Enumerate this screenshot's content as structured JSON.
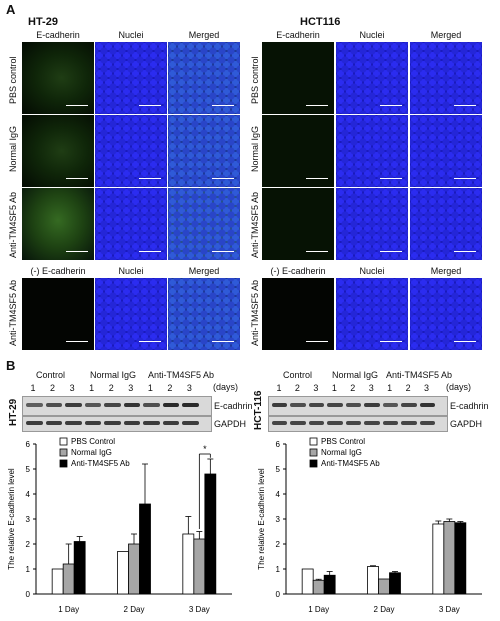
{
  "panel_a": {
    "letter": "A",
    "sections": [
      {
        "title": "HT-29",
        "cols": [
          "E-cadherin",
          "Nuclei",
          "Merged"
        ],
        "rows": [
          "PBS control",
          "Normal IgG",
          "Anti-TM4SF5 Ab"
        ],
        "neg_cols": [
          "(-) E-cadherin",
          "Nuclei",
          "Merged"
        ],
        "neg_row": "Anti-TM4SF5 Ab"
      },
      {
        "title": "HCT116",
        "cols": [
          "E-cadherin",
          "Nuclei",
          "Merged"
        ],
        "rows": [
          "PBS control",
          "Normal IgG",
          "Anti-TM4SF5 Ab"
        ],
        "neg_cols": [
          "(-) E-cadherin",
          "Nuclei",
          "Merged"
        ],
        "neg_row": "Anti-TM4SF5 Ab"
      }
    ]
  },
  "panel_b": {
    "letter": "B",
    "blots": [
      {
        "cell": "HT-29",
        "groups": [
          "Control",
          "Normal IgG",
          "Anti-TM4SF5 Ab"
        ],
        "lanes": [
          "1",
          "2",
          "3",
          "1",
          "2",
          "3",
          "1",
          "2",
          "3"
        ],
        "days": "(days)",
        "bands": [
          "E-cadhrin",
          "GAPDH"
        ]
      },
      {
        "cell": "HCT-116",
        "groups": [
          "Control",
          "Normal IgG",
          "Anti-TM4SF5 Ab"
        ],
        "lanes": [
          "1",
          "2",
          "3",
          "1",
          "2",
          "3",
          "1",
          "2",
          "3"
        ],
        "days": "(days)",
        "bands": [
          "E-cadhrin",
          "GAPDH"
        ]
      }
    ]
  },
  "chart_data": [
    {
      "type": "bar",
      "categories": [
        "1 Day",
        "2 Day",
        "3 Day"
      ],
      "series": [
        {
          "name": "PBS Control",
          "color": "#ffffff",
          "values": [
            1.0,
            1.7,
            2.4
          ],
          "errors": [
            0.0,
            0.0,
            0.7
          ]
        },
        {
          "name": "Normal IgG",
          "color": "#a6a6a6",
          "values": [
            1.2,
            2.0,
            2.2
          ],
          "errors": [
            0.8,
            0.4,
            0.3
          ]
        },
        {
          "name": "Anti-TM4SF5 Ab",
          "color": "#000000",
          "values": [
            2.1,
            3.6,
            4.8
          ],
          "errors": [
            0.2,
            1.6,
            0.6
          ]
        }
      ],
      "ylabel": "The relative E-cadherin level",
      "ylim": [
        0,
        6
      ],
      "yticks": [
        "0",
        "1",
        "2",
        "3",
        "4",
        "5",
        "6"
      ],
      "significance": "*",
      "legend_position": "top-left"
    },
    {
      "type": "bar",
      "categories": [
        "1 Day",
        "2 Day",
        "3 Day"
      ],
      "series": [
        {
          "name": "PBS Control",
          "color": "#ffffff",
          "values": [
            1.0,
            1.1,
            2.8
          ],
          "errors": [
            0.0,
            0.03,
            0.12
          ]
        },
        {
          "name": "Normal IgG",
          "color": "#a6a6a6",
          "values": [
            0.55,
            0.6,
            2.9
          ],
          "errors": [
            0.04,
            0.0,
            0.1
          ]
        },
        {
          "name": "Anti-TM4SF5 Ab",
          "color": "#000000",
          "values": [
            0.75,
            0.85,
            2.85
          ],
          "errors": [
            0.15,
            0.05,
            0.05
          ]
        }
      ],
      "ylabel": "The relative E-cadherin level",
      "ylim": [
        0,
        6
      ],
      "yticks": [
        "0",
        "1",
        "2",
        "3",
        "4",
        "5",
        "6"
      ],
      "legend_position": "top-left"
    }
  ]
}
